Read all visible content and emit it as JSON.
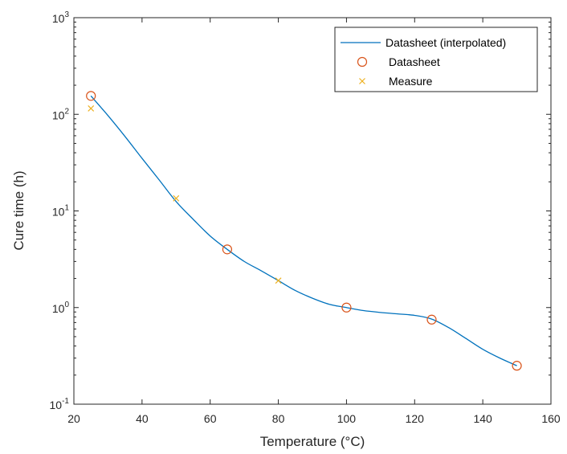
{
  "chart_data": {
    "type": "line",
    "xlabel": "Temperature (°C)",
    "ylabel": "Cure time (h)",
    "xlim": [
      20,
      160
    ],
    "ylim": [
      0.1,
      1000
    ],
    "yscale": "log",
    "xticks": [
      20,
      40,
      60,
      80,
      100,
      120,
      140,
      160
    ],
    "yticks": [
      {
        "value": 0.1,
        "base": "10",
        "exp": "-1"
      },
      {
        "value": 1,
        "base": "10",
        "exp": "0"
      },
      {
        "value": 10,
        "base": "10",
        "exp": "1"
      },
      {
        "value": 100,
        "base": "10",
        "exp": "2"
      },
      {
        "value": 1000,
        "base": "10",
        "exp": "3"
      }
    ],
    "grid": false,
    "legend_position": "top-right",
    "series": [
      {
        "name": "Datasheet (interpolated)",
        "style": "line",
        "color": "#0072BD",
        "x": [
          25,
          30,
          35,
          40,
          45,
          50,
          55,
          60,
          65,
          70,
          75,
          80,
          85,
          90,
          95,
          100,
          105,
          110,
          115,
          120,
          125,
          130,
          135,
          140,
          145,
          150
        ],
        "y": [
          155,
          97,
          59,
          35,
          21,
          12.5,
          8.2,
          5.5,
          4.0,
          3.0,
          2.4,
          1.9,
          1.5,
          1.25,
          1.08,
          1.0,
          0.93,
          0.89,
          0.86,
          0.83,
          0.76,
          0.62,
          0.48,
          0.37,
          0.3,
          0.25
        ]
      },
      {
        "name": "Datasheet",
        "style": "circle",
        "color": "#D95319",
        "x": [
          25,
          65,
          100,
          125,
          150
        ],
        "y": [
          155,
          4.0,
          1.0,
          0.75,
          0.25
        ]
      },
      {
        "name": "Measure",
        "style": "x",
        "color": "#EDB120",
        "x": [
          25,
          50,
          80
        ],
        "y": [
          115,
          13.5,
          1.9
        ]
      }
    ]
  }
}
